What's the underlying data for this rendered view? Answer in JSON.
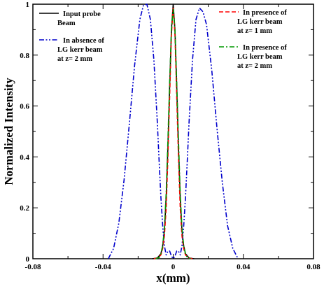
{
  "chart_data": {
    "type": "line",
    "title": "",
    "xlabel": "x(mm)",
    "ylabel": "Normalized Intensity",
    "xlim": [
      -0.08,
      0.08
    ],
    "ylim": [
      0,
      1
    ],
    "grid": false,
    "x_ticks": [
      -0.08,
      -0.04,
      0,
      0.04,
      0.08
    ],
    "x_tick_labels": [
      "-0.08",
      "-0.04",
      "0",
      "0.04",
      "0.08"
    ],
    "y_ticks": [
      0,
      0.2,
      0.4,
      0.6,
      0.8,
      1
    ],
    "y_tick_labels": [
      "0",
      "0.2",
      "0.4",
      "0.6",
      "0.8",
      "1"
    ],
    "series": [
      {
        "name": "Input probe Beam",
        "legend_lines": [
          "Input probe",
          "Beam"
        ],
        "style": "solid",
        "color": "#000000",
        "x": [
          -0.012,
          -0.009,
          -0.007,
          -0.006,
          -0.005,
          -0.004,
          -0.003,
          -0.002,
          -0.001,
          0,
          0.001,
          0.002,
          0.003,
          0.004,
          0.005,
          0.006,
          0.007,
          0.009,
          0.012
        ],
        "y": [
          0,
          0.003,
          0.02,
          0.05,
          0.11,
          0.24,
          0.44,
          0.68,
          0.9,
          1,
          0.9,
          0.68,
          0.44,
          0.24,
          0.11,
          0.05,
          0.02,
          0.003,
          0
        ]
      },
      {
        "name": "In absence of LG kerr beam at z= 2 mm",
        "legend_lines": [
          "In absence of",
          "LG kerr beam",
          "at z= 2 mm"
        ],
        "style": "dash-dot-dot",
        "color": "#0000cc",
        "x": [
          -0.037,
          -0.034,
          -0.031,
          -0.028,
          -0.025,
          -0.022,
          -0.019,
          -0.017,
          -0.015,
          -0.013,
          -0.011,
          -0.009,
          -0.008,
          -0.007,
          -0.006,
          -0.005,
          -0.004,
          -0.003,
          -0.002,
          -0.001,
          0,
          0.001,
          0.002,
          0.003,
          0.004,
          0.005,
          0.006,
          0.007,
          0.008,
          0.009,
          0.011,
          0.013,
          0.015,
          0.017,
          0.019,
          0.022,
          0.025,
          0.028,
          0.031,
          0.034,
          0.037
        ],
        "y": [
          0,
          0.04,
          0.14,
          0.31,
          0.53,
          0.76,
          0.94,
          0.995,
          1,
          0.94,
          0.78,
          0.53,
          0.38,
          0.24,
          0.13,
          0.05,
          0.015,
          0.03,
          0.03,
          0.01,
          0,
          0.01,
          0.03,
          0.03,
          0.015,
          0.05,
          0.13,
          0.24,
          0.38,
          0.53,
          0.78,
          0.94,
          0.985,
          0.97,
          0.92,
          0.74,
          0.51,
          0.3,
          0.13,
          0.04,
          0
        ]
      },
      {
        "name": "In presence of LG kerr beam at z= 1 mm",
        "legend_lines": [
          "In presence of",
          "LG kerr beam",
          "at z= 1 mm"
        ],
        "style": "dashed",
        "color": "#ff0000",
        "x": [
          -0.011,
          -0.009,
          -0.007,
          -0.006,
          -0.005,
          -0.004,
          -0.003,
          -0.002,
          -0.001,
          0,
          0.001,
          0.002,
          0.003,
          0.004,
          0.005,
          0.006,
          0.007,
          0.009,
          0.011
        ],
        "y": [
          0,
          0.003,
          0.015,
          0.04,
          0.09,
          0.2,
          0.4,
          0.64,
          0.88,
          0.99,
          0.88,
          0.64,
          0.4,
          0.2,
          0.09,
          0.04,
          0.015,
          0.003,
          0
        ]
      },
      {
        "name": "In presence of LG kerr beam at z= 2 mm",
        "legend_lines": [
          "In presence of",
          "LG kerr beam",
          "at z= 2 mm"
        ],
        "style": "dash-dot",
        "color": "#009900",
        "x": [
          -0.01,
          -0.008,
          -0.007,
          -0.006,
          -0.005,
          -0.004,
          -0.003,
          -0.002,
          -0.001,
          0,
          0.001,
          0.002,
          0.003,
          0.004,
          0.005,
          0.006,
          0.007,
          0.008,
          0.01
        ],
        "y": [
          0,
          0.005,
          0.02,
          0.05,
          0.12,
          0.26,
          0.47,
          0.7,
          0.9,
          0.98,
          0.9,
          0.7,
          0.47,
          0.26,
          0.12,
          0.05,
          0.02,
          0.005,
          0
        ]
      }
    ]
  }
}
